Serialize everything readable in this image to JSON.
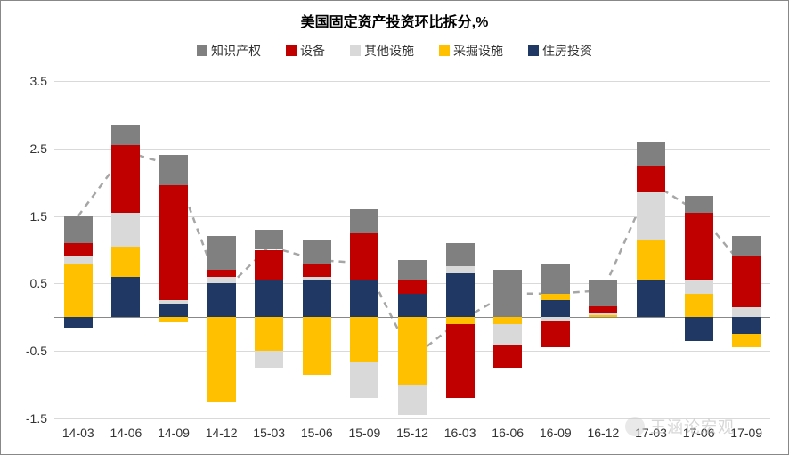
{
  "title": "美国固定资产投资环比拆分,%",
  "legend": [
    {
      "label": "知识产权",
      "color": "#808080"
    },
    {
      "label": "设备",
      "color": "#c00000"
    },
    {
      "label": "其他设施",
      "color": "#d9d9d9"
    },
    {
      "label": "采掘设施",
      "color": "#ffc000"
    },
    {
      "label": "住房投资",
      "color": "#1f3864"
    }
  ],
  "series_order_pos": [
    "住房投资",
    "采掘设施",
    "其他设施",
    "设备",
    "知识产权"
  ],
  "series_order_neg": [
    "住房投资",
    "采掘设施",
    "其他设施",
    "设备",
    "知识产权"
  ],
  "colors": {
    "知识产权": "#808080",
    "设备": "#c00000",
    "其他设施": "#d9d9d9",
    "采掘设施": "#ffc000",
    "住房投资": "#1f3864"
  },
  "y_axis": {
    "min": -1.5,
    "max": 3.5,
    "ticks": [
      -1.5,
      -0.5,
      0.5,
      1.5,
      2.5,
      3.5
    ]
  },
  "categories": [
    "14-03",
    "14-06",
    "14-09",
    "14-12",
    "15-03",
    "15-06",
    "15-09",
    "15-12",
    "16-03",
    "16-06",
    "16-09",
    "16-12",
    "17-03",
    "17-06",
    "17-09"
  ],
  "data": [
    {
      "住房投资": -0.15,
      "采掘设施": 0.8,
      "其他设施": 0.1,
      "设备": 0.2,
      "知识产权": 0.4
    },
    {
      "住房投资": 0.6,
      "采掘设施": 0.45,
      "其他设施": 0.5,
      "设备": 1.0,
      "知识产权": 0.3
    },
    {
      "住房投资": 0.2,
      "采掘设施": -0.08,
      "其他设施": 0.05,
      "设备": 1.7,
      "知识产权": 0.45
    },
    {
      "住房投资": 0.5,
      "采掘设施": -1.25,
      "其他设施": 0.1,
      "设备": 0.1,
      "知识产权": 0.5
    },
    {
      "住房投资": 0.55,
      "采掘设施": -0.5,
      "其他设施": -0.25,
      "设备": 0.45,
      "知识产权": 0.3
    },
    {
      "住房投资": 0.55,
      "采掘设施": -0.85,
      "其他设施": 0.05,
      "设备": 0.2,
      "知识产权": 0.35
    },
    {
      "住房投资": 0.55,
      "采掘设施": -0.65,
      "其他设施": -0.55,
      "设备": 0.7,
      "知识产权": 0.35
    },
    {
      "住房投资": 0.35,
      "采掘设施": -1.0,
      "其他设施": -0.45,
      "设备": 0.2,
      "知识产权": 0.3
    },
    {
      "住房投资": 0.65,
      "采掘设施": -0.1,
      "其他设施": 0.1,
      "设备": -1.1,
      "知识产权": 0.35
    },
    {
      "住房投资": 0.0,
      "采掘设施": -0.1,
      "其他设施": -0.3,
      "设备": -0.35,
      "知识产权": 0.7
    },
    {
      "住房投资": 0.25,
      "采掘设施": 0.1,
      "其他设施": -0.05,
      "设备": -0.4,
      "知识产权": 0.45
    },
    {
      "住房投资": 0.0,
      "采掘设施": 0.03,
      "其他设施": 0.03,
      "设备": 0.1,
      "知识产权": 0.4
    },
    {
      "住房投资": 0.55,
      "采掘设施": 0.6,
      "其他设施": 0.7,
      "设备": 0.4,
      "知识产权": 0.35
    },
    {
      "住房投资": -0.35,
      "采掘设施": 0.35,
      "其他设施": 0.2,
      "设备": 1.0,
      "知识产权": 0.25
    },
    {
      "住房投资": -0.25,
      "采掘设施": -0.2,
      "其他设施": 0.15,
      "设备": 0.75,
      "知识产权": 0.3
    }
  ],
  "dashed_line": [
    1.5,
    2.45,
    2.25,
    0.35,
    1.05,
    0.85,
    0.8,
    -0.6,
    -0.05,
    0.35,
    0.35,
    0.4,
    2.0,
    1.55,
    0.7
  ],
  "dashed_line_style": {
    "color": "#a6a6a6",
    "width": 2.5,
    "dash": "7 6"
  },
  "bar_width_ratio": 0.6,
  "background": "#ffffff",
  "grid_color": "#d9d9d9",
  "axis_color": "#888888",
  "title_fontsize": 16,
  "label_fontsize": 14,
  "watermark": "王涵论宏观"
}
